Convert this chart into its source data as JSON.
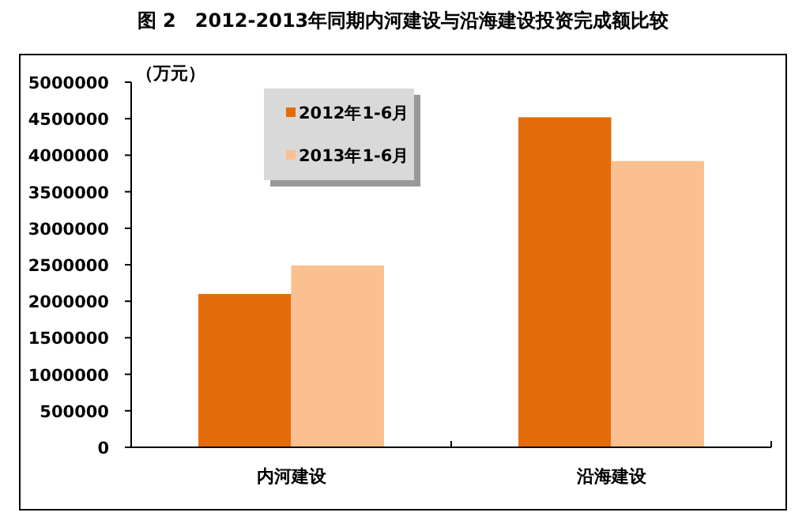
{
  "chart_data": {
    "type": "bar",
    "title": "图 2　2012-2013年同期内河建设与沿海建设投资完成额比较",
    "ylabel": "（万元）",
    "categories": [
      "内河建设",
      "沿海建设"
    ],
    "series": [
      {
        "name": "2012年1-6月",
        "color": "#e36c0a",
        "values": [
          2100000,
          4520000
        ]
      },
      {
        "name": "2013年1-6月",
        "color": "#fac090",
        "values": [
          2490000,
          3920000
        ]
      }
    ],
    "ylim": [
      0,
      5000000
    ],
    "yticks": [
      0,
      500000,
      1000000,
      1500000,
      2000000,
      2500000,
      3000000,
      3500000,
      4000000,
      4500000,
      5000000
    ],
    "grid": false,
    "legend": "top left"
  }
}
